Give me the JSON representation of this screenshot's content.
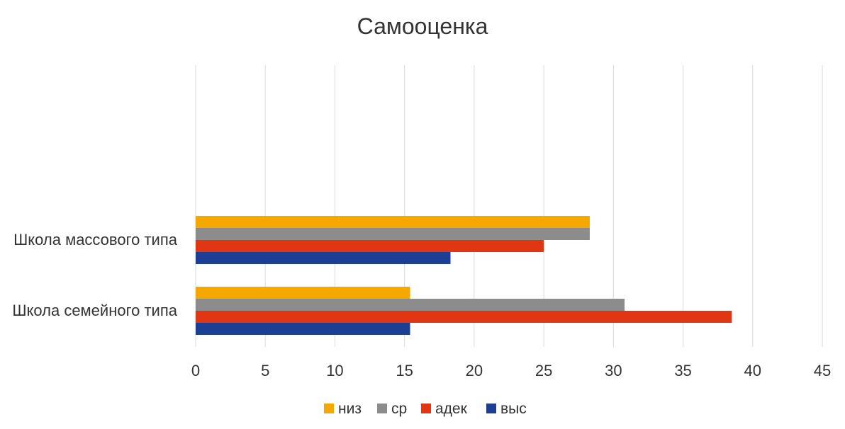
{
  "chart_data": {
    "type": "bar",
    "orientation": "horizontal",
    "title": "Самооценка",
    "categories": [
      "Школа массового типа",
      "Школа семейного типа"
    ],
    "series": [
      {
        "name": "низ",
        "color": "#F5A800",
        "values": [
          28.3,
          15.4
        ]
      },
      {
        "name": "ср",
        "color": "#8C8C8C",
        "values": [
          28.3,
          30.8
        ]
      },
      {
        "name": "адек",
        "color": "#E03613",
        "values": [
          25.0,
          38.5
        ]
      },
      {
        "name": "выс",
        "color": "#1C3F94",
        "values": [
          18.3,
          15.4
        ]
      }
    ],
    "xlim": [
      0,
      45
    ],
    "xticks": [
      "0",
      "5",
      "10",
      "15",
      "20",
      "25",
      "30",
      "35",
      "40",
      "45"
    ],
    "grid": true,
    "legend": "bottom"
  }
}
